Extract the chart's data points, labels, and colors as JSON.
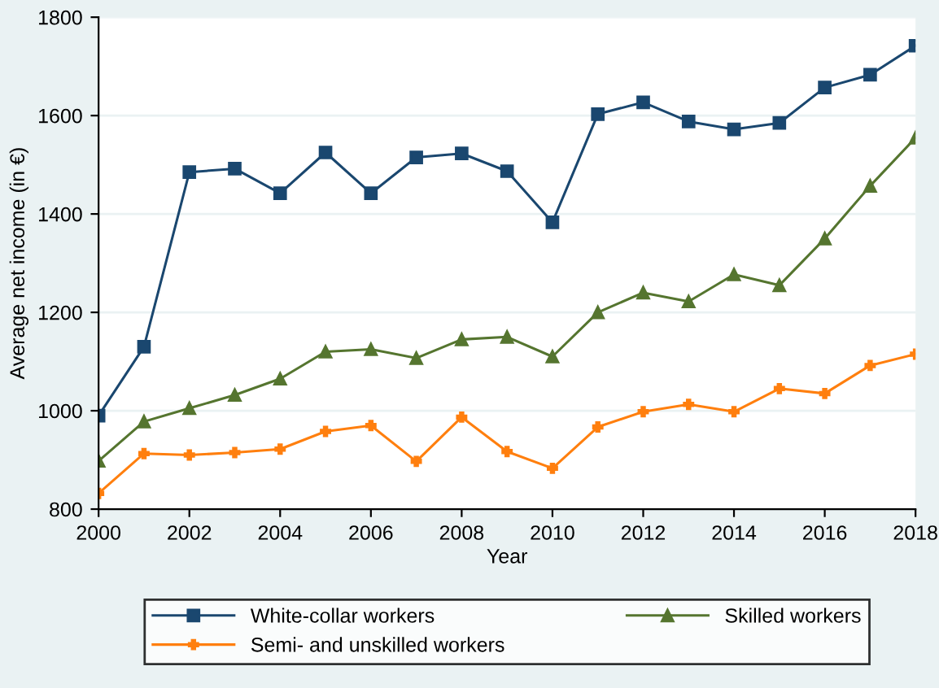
{
  "chart_data": {
    "type": "line",
    "xlabel": "Year",
    "ylabel": "Average net income (in €)",
    "x": [
      2000,
      2001,
      2002,
      2003,
      2004,
      2005,
      2006,
      2007,
      2008,
      2009,
      2010,
      2011,
      2012,
      2013,
      2014,
      2015,
      2016,
      2017,
      2018
    ],
    "series": [
      {
        "name": "White-collar workers",
        "color": "#1a476f",
        "marker": "square",
        "values": [
          990,
          1130,
          1485,
          1492,
          1442,
          1525,
          1442,
          1515,
          1523,
          1487,
          1383,
          1603,
          1627,
          1588,
          1572,
          1585,
          1657,
          1683,
          1742
        ]
      },
      {
        "name": "Skilled workers",
        "color": "#55752f",
        "marker": "triangle",
        "values": [
          898,
          978,
          1005,
          1032,
          1065,
          1120,
          1125,
          1107,
          1145,
          1150,
          1110,
          1200,
          1240,
          1222,
          1277,
          1255,
          1350,
          1457,
          1555
        ]
      },
      {
        "name": "Semi- and unskilled workers",
        "color": "#ff7f0e",
        "marker": "cross",
        "values": [
          832,
          913,
          910,
          915,
          922,
          958,
          970,
          897,
          987,
          917,
          883,
          967,
          998,
          1013,
          998,
          1045,
          1035,
          1092,
          1115
        ]
      }
    ],
    "xlim": [
      2000,
      2018
    ],
    "xticks": [
      2000,
      2002,
      2004,
      2006,
      2008,
      2010,
      2012,
      2014,
      2016,
      2018
    ],
    "ylim": [
      800,
      1800
    ],
    "yticks": [
      800,
      1000,
      1200,
      1400,
      1600,
      1800
    ],
    "grid": "y",
    "legend": "bottom",
    "line_style": "solid"
  }
}
